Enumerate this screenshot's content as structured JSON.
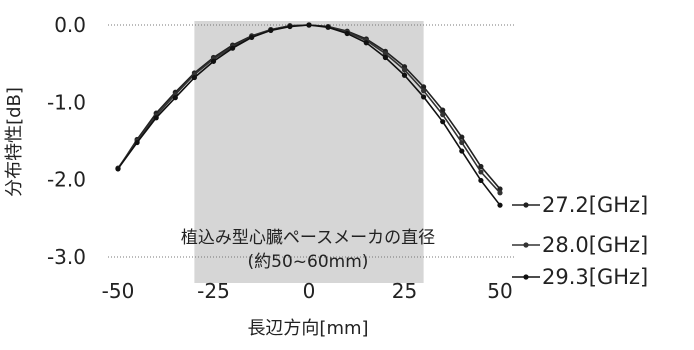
{
  "chart_data": {
    "type": "line",
    "title": "",
    "xlabel": "長辺方向[mm]",
    "ylabel": "分布特性[dB]",
    "xlim": [
      -50,
      50
    ],
    "ylim": [
      -3.0,
      0.0
    ],
    "xticks": [
      "-50",
      "-25",
      "0",
      "25",
      "50"
    ],
    "yticks": [
      "0.0",
      "-1.0",
      "-2.0",
      "-3.0"
    ],
    "grid": false,
    "legend_position": "right",
    "annotation": {
      "line1": "植込み型心臓ペースメーカの直径",
      "line2": "(約50~60mm)",
      "shaded_x_range": [
        -30,
        30
      ]
    },
    "x": [
      -50,
      -45,
      -40,
      -35,
      -30,
      -25,
      -20,
      -15,
      -10,
      -5,
      0,
      5,
      10,
      15,
      20,
      25,
      30,
      35,
      40,
      45,
      50
    ],
    "series": [
      {
        "name": "27.2[GHz]",
        "color": "#222222",
        "values": [
          -1.86,
          -1.48,
          -1.14,
          -0.87,
          -0.62,
          -0.42,
          -0.26,
          -0.14,
          -0.06,
          -0.01,
          0.0,
          -0.02,
          -0.08,
          -0.18,
          -0.34,
          -0.54,
          -0.8,
          -1.1,
          -1.45,
          -1.83,
          -2.12
        ]
      },
      {
        "name": "28.0[GHz]",
        "color": "#333333",
        "values": [
          -1.85,
          -1.5,
          -1.17,
          -0.9,
          -0.64,
          -0.44,
          -0.28,
          -0.15,
          -0.06,
          -0.01,
          0.0,
          -0.02,
          -0.09,
          -0.2,
          -0.37,
          -0.58,
          -0.85,
          -1.16,
          -1.52,
          -1.9,
          -2.17
        ]
      },
      {
        "name": "29.3[GHz]",
        "color": "#111111",
        "values": [
          -1.86,
          -1.52,
          -1.2,
          -0.94,
          -0.68,
          -0.47,
          -0.3,
          -0.16,
          -0.07,
          -0.02,
          0.0,
          -0.03,
          -0.11,
          -0.23,
          -0.42,
          -0.65,
          -0.93,
          -1.25,
          -1.63,
          -2.01,
          -2.33
        ]
      }
    ]
  }
}
